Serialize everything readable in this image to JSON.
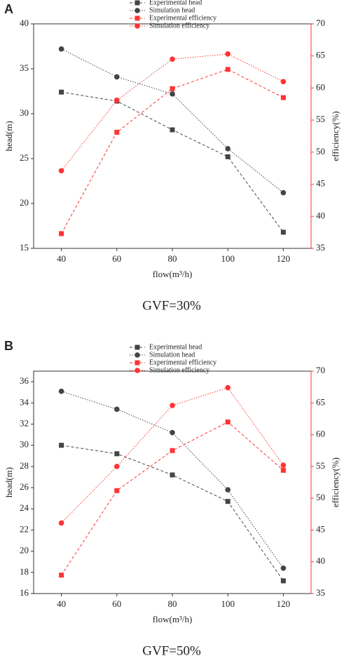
{
  "chart_data": [
    {
      "type": "line",
      "label": "A",
      "caption": "GVF=30%",
      "x_label": "flow(m³/h)",
      "y_label": "head(m)",
      "y2_label": "efficiency(%)",
      "x": [
        40,
        60,
        80,
        100,
        120
      ],
      "xlim": [
        30,
        130
      ],
      "xticks": [
        40,
        60,
        80,
        100,
        120
      ],
      "ylim": [
        15,
        40
      ],
      "yticks": [
        15,
        20,
        25,
        30,
        35,
        40
      ],
      "y2lim": [
        35,
        70
      ],
      "y2ticks": [
        35,
        40,
        45,
        50,
        55,
        60,
        65,
        70
      ],
      "y2_color": "#ff3333",
      "series": [
        {
          "name": "Experimental head",
          "color": "#444444",
          "marker": "square",
          "dash": "dashed",
          "values": [
            32.4,
            31.4,
            28.2,
            25.2,
            16.8
          ]
        },
        {
          "name": "Simulation head",
          "color": "#444444",
          "marker": "circle",
          "dash": "dotted",
          "values": [
            37.2,
            34.1,
            32.2,
            26.1,
            21.2
          ]
        },
        {
          "name": "Experimental efficiency",
          "color": "#ff3333",
          "marker": "square",
          "dash": "dashed",
          "axis": "y2",
          "values": [
            37.3,
            53.1,
            59.9,
            62.9,
            58.5
          ]
        },
        {
          "name": "Simulation efficiency",
          "color": "#ff3333",
          "marker": "circle",
          "dash": "dotted",
          "axis": "y2",
          "values": [
            47.1,
            58.1,
            64.5,
            65.3,
            61.0
          ]
        }
      ]
    },
    {
      "type": "line",
      "label": "B",
      "caption": "GVF=50%",
      "x_label": "flow(m³/h)",
      "y_label": "head(m)",
      "y2_label": "efficiency(%)",
      "x": [
        40,
        60,
        80,
        100,
        120
      ],
      "xlim": [
        30,
        130
      ],
      "xticks": [
        40,
        60,
        80,
        100,
        120
      ],
      "ylim": [
        16,
        37
      ],
      "yticks": [
        16,
        18,
        20,
        22,
        24,
        26,
        28,
        30,
        32,
        34,
        36
      ],
      "y2lim": [
        35,
        70
      ],
      "y2ticks": [
        35,
        40,
        45,
        50,
        55,
        60,
        65,
        70
      ],
      "y2_color": "#ff3333",
      "series": [
        {
          "name": "Experimental head",
          "color": "#444444",
          "marker": "square",
          "dash": "dashed",
          "values": [
            30.0,
            29.2,
            27.2,
            24.7,
            17.2
          ]
        },
        {
          "name": "Simulation head",
          "color": "#444444",
          "marker": "circle",
          "dash": "dotted",
          "values": [
            35.1,
            33.4,
            31.2,
            25.8,
            18.4
          ]
        },
        {
          "name": "Experimental efficiency",
          "color": "#ff3333",
          "marker": "square",
          "dash": "dashed",
          "axis": "y2",
          "values": [
            37.9,
            51.2,
            57.5,
            62.0,
            54.4
          ]
        },
        {
          "name": "Simulation efficiency",
          "color": "#ff3333",
          "marker": "circle",
          "dash": "dotted",
          "axis": "y2",
          "values": [
            46.1,
            55.0,
            64.6,
            67.4,
            55.2
          ]
        }
      ]
    }
  ]
}
